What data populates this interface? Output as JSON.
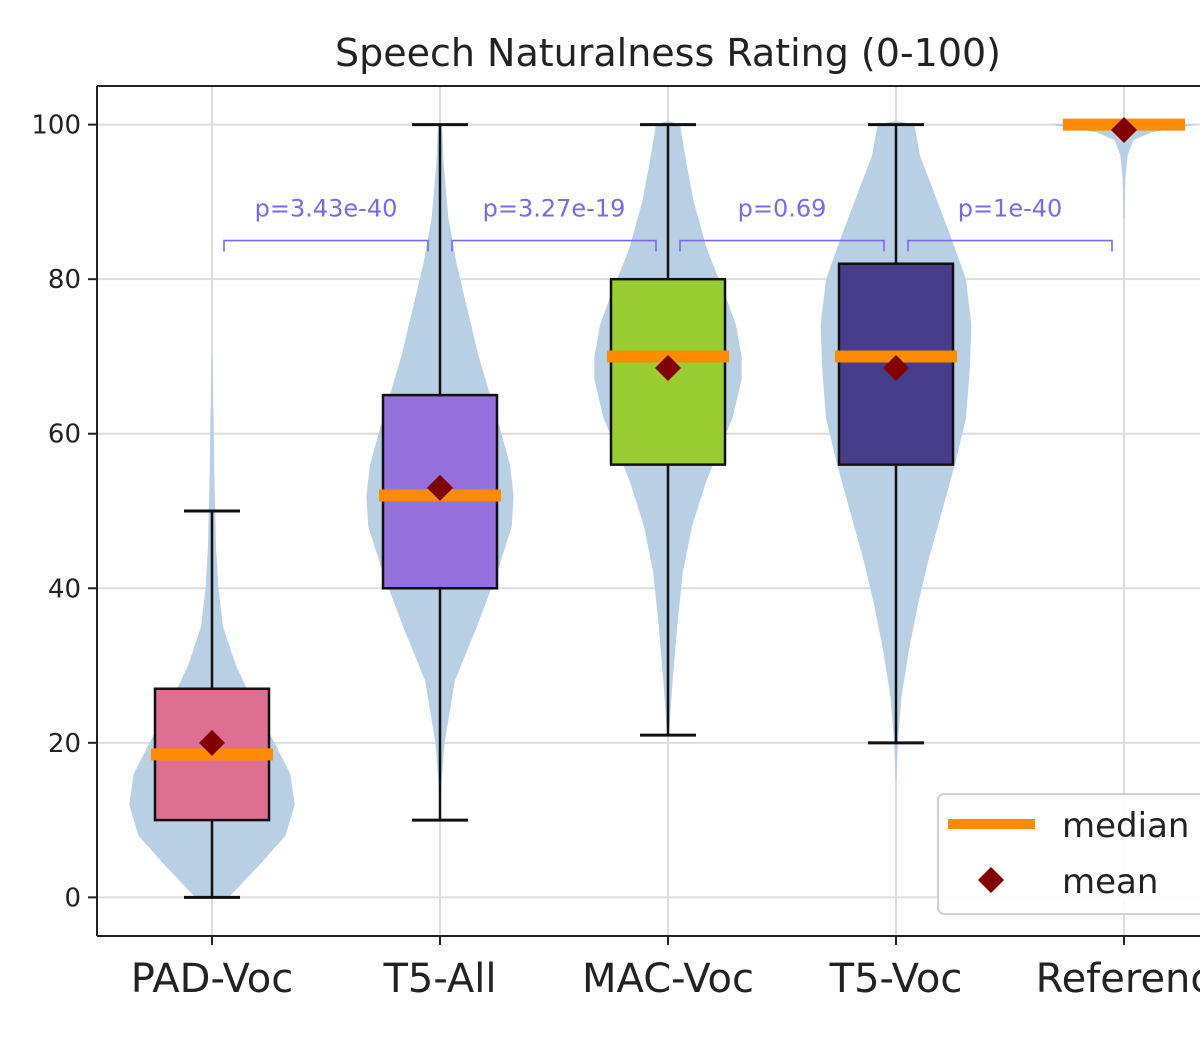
{
  "chart_data": {
    "type": "box-violin",
    "title": "Speech Naturalness Rating (0-100)",
    "xlabel": "",
    "ylabel": "",
    "ylim": [
      -5,
      105
    ],
    "yticks": [
      0,
      20,
      40,
      60,
      80,
      100
    ],
    "ytick_labels": [
      "0",
      "20",
      "40",
      "60",
      "80",
      "100"
    ],
    "categories": [
      "PAD-Voc",
      "T5-All",
      "MAC-Voc",
      "T5-Voc",
      "Reference"
    ],
    "category_labels": [
      "PAD-Voc",
      "T5-All",
      "MAC-Voc",
      "T5-Voc",
      "Referenc"
    ],
    "grid": true,
    "boxes": [
      {
        "category": "PAD-Voc",
        "whisker_low": 0,
        "q1": 10,
        "median": 18.5,
        "q3": 27,
        "whisker_high": 50,
        "mean": 20,
        "color": "#dc6f92"
      },
      {
        "category": "T5-All",
        "whisker_low": 10,
        "q1": 40,
        "median": 52,
        "q3": 65,
        "whisker_high": 100,
        "mean": 53,
        "color": "#9370db"
      },
      {
        "category": "MAC-Voc",
        "whisker_low": 21,
        "q1": 56,
        "median": 70,
        "q3": 80,
        "whisker_high": 100,
        "mean": 68.5,
        "color": "#9acd32"
      },
      {
        "category": "T5-Voc",
        "whisker_low": 20,
        "q1": 56,
        "median": 70,
        "q3": 82,
        "whisker_high": 100,
        "mean": 68.5,
        "color": "#483d8b"
      },
      {
        "category": "Reference",
        "whisker_low": 100,
        "q1": 100,
        "median": 100,
        "q3": 100,
        "whisker_high": 100,
        "mean": 99.3,
        "color": "#dc6f92"
      }
    ],
    "violins": [
      {
        "category": "PAD-Voc",
        "profile": [
          [
            0,
            0.18
          ],
          [
            4,
            0.5
          ],
          [
            8,
            0.8
          ],
          [
            12,
            0.9
          ],
          [
            16,
            0.85
          ],
          [
            20,
            0.68
          ],
          [
            25,
            0.46
          ],
          [
            30,
            0.26
          ],
          [
            35,
            0.12
          ],
          [
            40,
            0.07
          ],
          [
            45,
            0.045
          ],
          [
            50,
            0.035
          ],
          [
            55,
            0.025
          ],
          [
            60,
            0.02
          ],
          [
            65,
            0.012
          ],
          [
            70,
            0.005
          ]
        ]
      },
      {
        "category": "T5-All",
        "profile": [
          [
            14,
            0.01
          ],
          [
            20,
            0.05
          ],
          [
            28,
            0.16
          ],
          [
            35,
            0.4
          ],
          [
            42,
            0.62
          ],
          [
            48,
            0.78
          ],
          [
            52,
            0.8
          ],
          [
            56,
            0.76
          ],
          [
            62,
            0.62
          ],
          [
            70,
            0.42
          ],
          [
            76,
            0.3
          ],
          [
            82,
            0.18
          ],
          [
            88,
            0.09
          ],
          [
            95,
            0.04
          ],
          [
            100,
            0.02
          ]
        ]
      },
      {
        "category": "MAC-Voc",
        "profile": [
          [
            21,
            0.01
          ],
          [
            28,
            0.05
          ],
          [
            35,
            0.1
          ],
          [
            42,
            0.16
          ],
          [
            48,
            0.26
          ],
          [
            54,
            0.42
          ],
          [
            58,
            0.56
          ],
          [
            62,
            0.7
          ],
          [
            67,
            0.8
          ],
          [
            70,
            0.8
          ],
          [
            74,
            0.74
          ],
          [
            78,
            0.62
          ],
          [
            84,
            0.42
          ],
          [
            90,
            0.28
          ],
          [
            95,
            0.2
          ],
          [
            100,
            0.13
          ]
        ]
      },
      {
        "category": "T5-Voc",
        "profile": [
          [
            15,
            0.005
          ],
          [
            20,
            0.02
          ],
          [
            26,
            0.06
          ],
          [
            32,
            0.14
          ],
          [
            38,
            0.24
          ],
          [
            44,
            0.36
          ],
          [
            50,
            0.5
          ],
          [
            56,
            0.64
          ],
          [
            62,
            0.76
          ],
          [
            68,
            0.8
          ],
          [
            74,
            0.82
          ],
          [
            80,
            0.76
          ],
          [
            86,
            0.58
          ],
          [
            91,
            0.42
          ],
          [
            96,
            0.26
          ],
          [
            100,
            0.2
          ]
        ]
      },
      {
        "category": "Reference",
        "profile": [
          [
            88,
            0.005
          ],
          [
            93,
            0.015
          ],
          [
            96,
            0.04
          ],
          [
            98,
            0.1
          ],
          [
            99,
            0.3
          ],
          [
            100,
            0.8
          ]
        ]
      }
    ],
    "significance": [
      {
        "from": "PAD-Voc",
        "to": "T5-All",
        "label": "p=3.43e-40"
      },
      {
        "from": "T5-All",
        "to": "MAC-Voc",
        "label": "p=3.27e-19"
      },
      {
        "from": "MAC-Voc",
        "to": "T5-Voc",
        "label": "p=0.69"
      },
      {
        "from": "T5-Voc",
        "to": "Reference",
        "label": "p=1e-40"
      }
    ],
    "significance_y": 85,
    "legend": {
      "position": "bottom-right",
      "entries": [
        {
          "label": "median",
          "marker": "line",
          "color": "#ff8c00"
        },
        {
          "label": "mean",
          "marker": "diamond",
          "color": "#800000"
        }
      ]
    },
    "colors": {
      "violin": "#b8cfe4",
      "median": "#ff8c00",
      "mean": "#800000",
      "significance": "#7b68ee",
      "grid": "#dddddd"
    }
  }
}
